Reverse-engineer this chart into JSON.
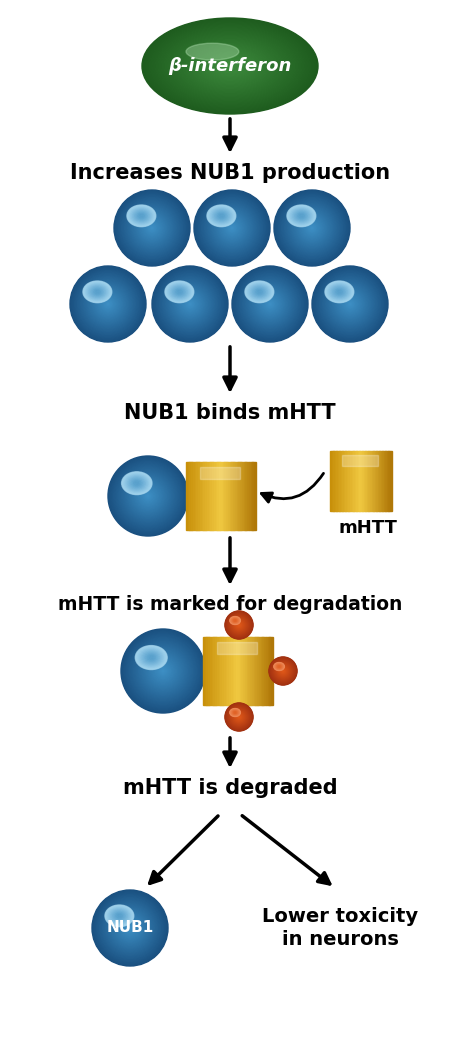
{
  "bg_color": "#ffffff",
  "fig_width": 4.61,
  "fig_height": 10.56,
  "dpi": 100,
  "beta_interferon_text": "β-interferon",
  "step1_text": "Increases NUB1 production",
  "step2_text": "NUB1 binds mHTT",
  "step3_text": "mHTT is marked for degradation",
  "step4_text": "mHTT is degraded",
  "nub1_label": "NUB1",
  "mhtt_label": "mHTT",
  "toxicity_text": "Lower toxicity\nin neurons",
  "text_color": "#000000",
  "white_text": "#ffffff",
  "blue_mid": "#3d8fc4",
  "blue_dark": "#1a5080",
  "blue_highlight": "#a8d8f0",
  "green_dark": "#1e5c1e",
  "green_mid": "#3d8b3d",
  "green_light": "#6ab96a",
  "green_highlight": "#b0e0b0",
  "gold_left": "#c8900a",
  "gold_center": "#f0c840",
  "gold_right": "#b07808",
  "orange_mid": "#e05818",
  "orange_dark": "#a03010",
  "orange_highlight": "#f09060"
}
